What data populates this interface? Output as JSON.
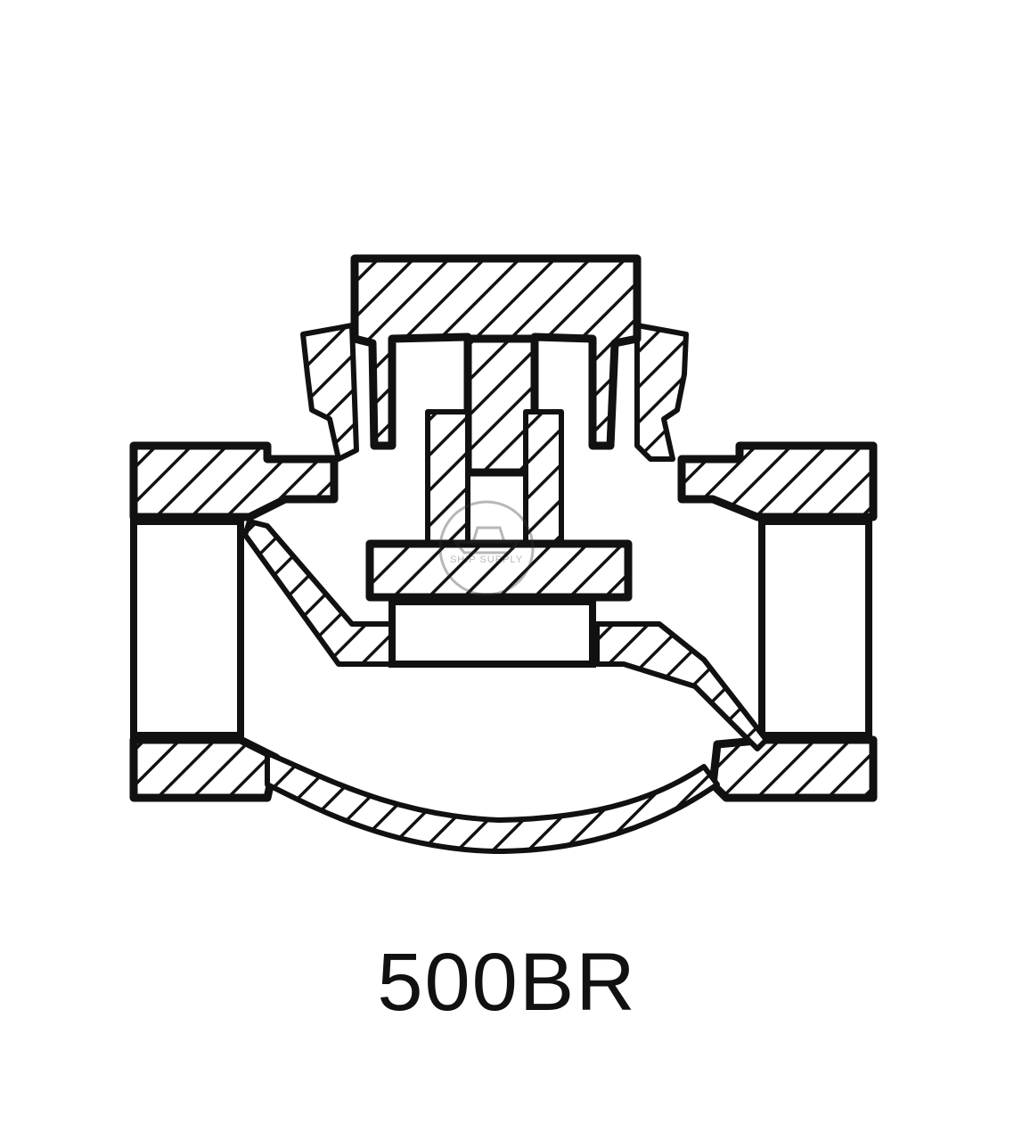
{
  "model_label": "500BR",
  "watermark": {
    "text": "SHIP SUPPLY",
    "icon": "ship-icon"
  },
  "colors": {
    "line": "#111111",
    "background": "#ffffff"
  }
}
